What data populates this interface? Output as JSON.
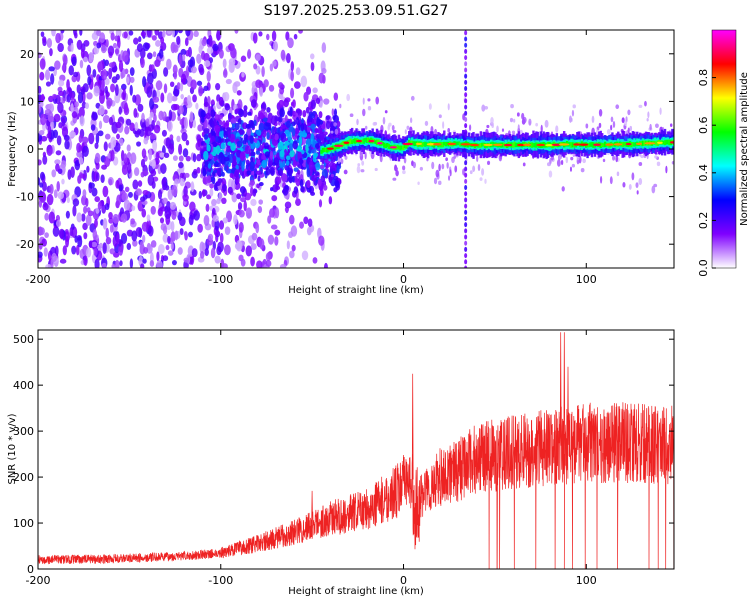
{
  "title": "S197.2025.253.09.51.G27",
  "chart_data": [
    {
      "type": "heatmap",
      "title": "S197.2025.253.09.51.G27",
      "xlabel": "Height of straight line (km)",
      "ylabel": "Frequency (Hz)",
      "xlim": [
        -200,
        148
      ],
      "ylim": [
        -25,
        25
      ],
      "xticks": [
        -200,
        -100,
        0,
        100
      ],
      "xtick_labels": [
        "-200",
        "-100",
        "0",
        "100"
      ],
      "yticks": [
        -20,
        -10,
        0,
        10,
        20
      ],
      "ytick_labels": [
        "-20",
        "-10",
        "0",
        "10",
        "20"
      ],
      "colorbar": {
        "label": "Normalized spectral amplitude",
        "range": [
          0,
          1
        ],
        "ticks": [
          0.0,
          0.2,
          0.4,
          0.6,
          0.8
        ],
        "tick_labels": [
          "0.0",
          "0.2",
          "0.4",
          "0.6",
          "0.8"
        ],
        "colors": [
          "#ffffff",
          "#7f00ff",
          "#0000ff",
          "#00ffff",
          "#00ff00",
          "#ffff00",
          "#ff0000",
          "#ff00ff"
        ]
      },
      "ridge": {
        "x": [
          -45,
          -38,
          -30,
          -20,
          -15,
          -10,
          -5,
          0,
          3,
          10,
          20,
          30,
          40,
          50,
          60,
          70,
          80,
          90,
          100,
          110,
          120,
          130,
          140,
          148
        ],
        "freq": [
          -0.5,
          0.3,
          1.5,
          1.8,
          1.5,
          0.8,
          0.3,
          0.2,
          1.3,
          1.0,
          1.0,
          1.1,
          0.8,
          0.9,
          0.8,
          0.9,
          0.8,
          1.0,
          0.9,
          0.9,
          1.0,
          1.1,
          1.3,
          1.4
        ]
      },
      "vertical_line_x": 34
    },
    {
      "type": "line",
      "xlabel": "Height of straight line (km)",
      "ylabel": "SNR (10 * v/v)",
      "xlim": [
        -200,
        148
      ],
      "ylim": [
        0,
        520
      ],
      "xticks": [
        -200,
        -100,
        0,
        100
      ],
      "xtick_labels": [
        "-200",
        "-100",
        "0",
        "100"
      ],
      "yticks": [
        0,
        100,
        200,
        300,
        400,
        500
      ],
      "ytick_labels": [
        "0",
        "100",
        "200",
        "300",
        "400",
        "500"
      ],
      "color": "#ee2222",
      "series": [
        {
          "name": "SNR",
          "trend_x": [
            -200,
            -160,
            -120,
            -100,
            -80,
            -60,
            -40,
            -20,
            -5,
            0,
            5,
            10,
            20,
            30,
            40,
            60,
            80,
            100,
            120,
            148
          ],
          "trend_y": [
            20,
            22,
            28,
            35,
            55,
            80,
            110,
            130,
            165,
            185,
            195,
            160,
            200,
            215,
            240,
            255,
            265,
            275,
            275,
            270
          ],
          "spikes": [
            {
              "x": 5,
              "y": 425
            },
            {
              "x": -50,
              "y": 170
            },
            {
              "x": 86,
              "y": 515
            },
            {
              "x": 88,
              "y": 515
            },
            {
              "x": 90,
              "y": 440
            }
          ]
        }
      ]
    }
  ]
}
